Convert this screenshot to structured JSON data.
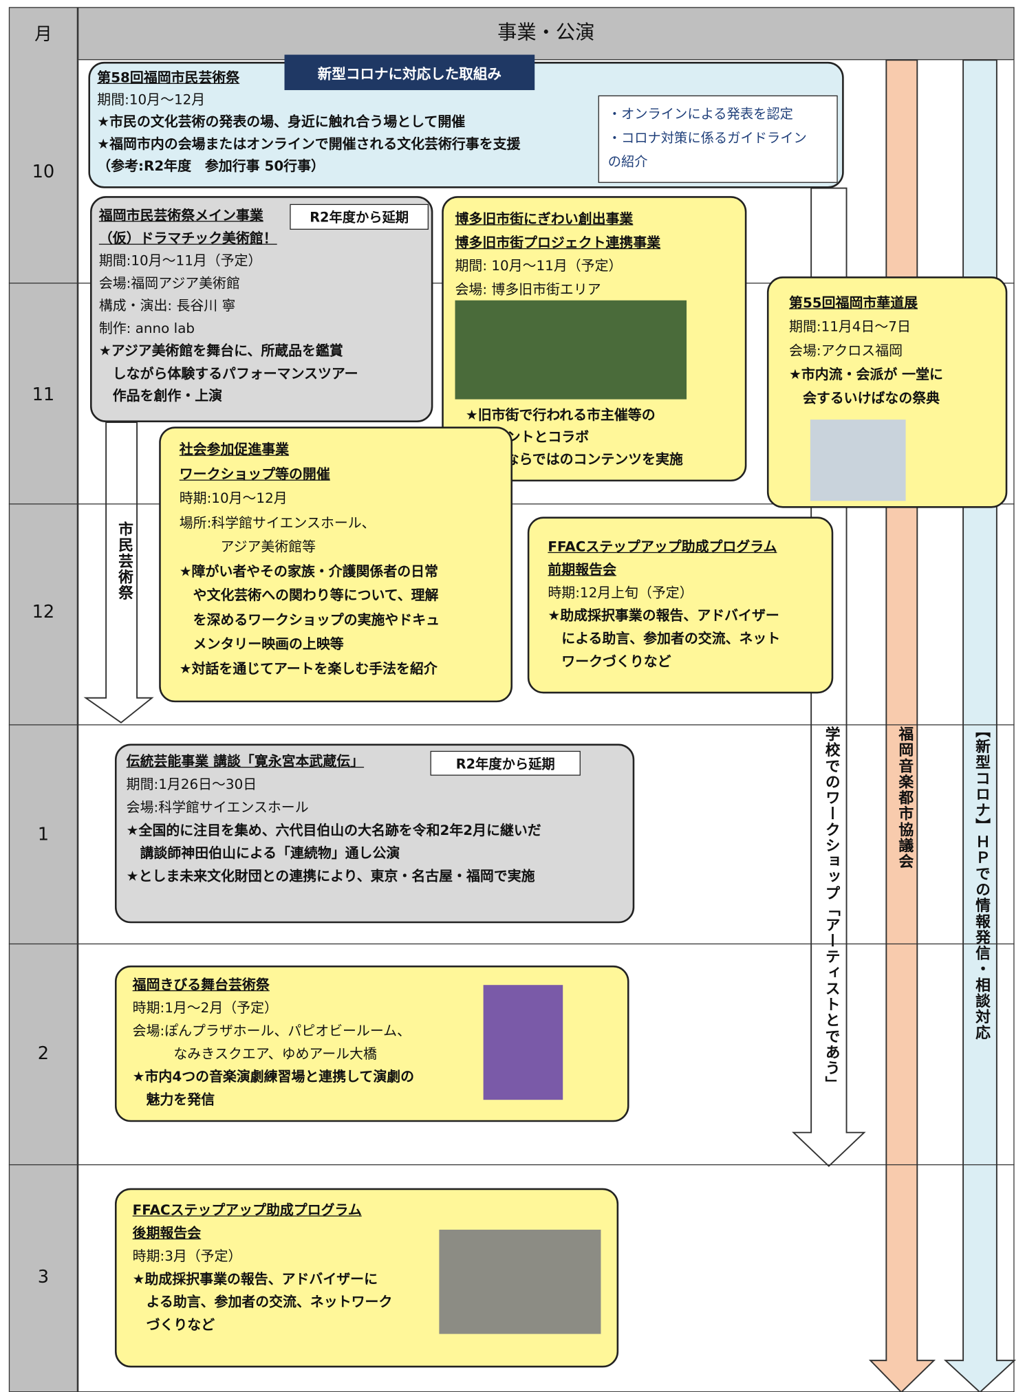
{
  "header": {
    "month_label": "月",
    "events_label": "事業・公演"
  },
  "months": [
    "10",
    "11",
    "12",
    "1",
    "2",
    "3"
  ],
  "corona_tag": "新型コロナに対応した取組み",
  "events": [
    {
      "title": [
        "第58回福岡市民芸術祭"
      ],
      "lines": [
        "期間:10月～12月",
        "★市民の文化芸術の発表の場、身近に触れ合う場として開催",
        "★福岡市内の会場またはオンラインで開催される文化芸術行事を支援",
        "（参考:R2年度　参加行事 50行事）"
      ],
      "note": [
        "・オンラインによる発表を認定",
        "・コロナ対策に係るガイドライン",
        "の紹介"
      ]
    },
    {
      "title": [
        "福岡市民芸術祭メイン事業",
        "（仮）ドラマチック美術館！"
      ],
      "tag": "R2年度から延期",
      "lines": [
        "期間:10月～11月（予定）",
        "会場:福岡アジア美術館",
        "構成・演出: 長谷川 寧",
        "制作: anno lab",
        "★アジア美術館を舞台に、所蔵品を鑑賞",
        "　しながら体験するパフォーマンスツアー",
        "　作品を創作・上演"
      ]
    },
    {
      "title": [
        "博多旧市街にぎわい創出事業",
        "博多旧市街プロジェクト連携事業"
      ],
      "lines": [
        "期間: 10月～11月（予定）",
        "会場: 博多旧市街エリア"
      ],
      "lines_after_image": [
        "★旧市街で行われる市主催等の",
        "　イベントとコラボ",
        "★財団ならではのコンテンツを実施"
      ]
    },
    {
      "title": [
        "第55回福岡市華道展"
      ],
      "lines": [
        "期間:11月4日～7日",
        "会場:アクロス福岡",
        "★市内流・会派が 一堂に",
        "　会するいけばなの祭典"
      ]
    },
    {
      "title": [
        "社会参加促進事業",
        "ワークショップ等の開催"
      ],
      "lines": [
        "時期:10月～12月",
        "場所:科学館サイエンスホール、",
        "　　　アジア美術館等",
        "★障がい者やその家族・介護関係者の日常",
        "　や文化芸術への関わり等について、理解",
        "　を深めるワークショップの実施やドキュ",
        "　メンタリー映画の上映等",
        "★対話を通じてアートを楽しむ手法を紹介"
      ]
    },
    {
      "title": [
        "FFACステップアップ助成プログラム",
        "前期報告会"
      ],
      "lines": [
        "時期:12月上旬（予定）",
        "★助成採択事業の報告、アドバイザー",
        "　による助言、参加者の交流、ネット",
        "　ワークづくりなど"
      ]
    },
    {
      "title": [
        "伝統芸能事業 講談「寛永宮本武蔵伝」"
      ],
      "tag": "R2年度から延期",
      "lines": [
        "期間:1月26日～30日",
        "会場:科学館サイエンスホール",
        "★全国的に注目を集め、六代目伯山の大名跡を令和2年2月に継いだ",
        "　講談師神田伯山による「連続物」通し公演",
        "★としま未来文化財団との連携により、東京・名古屋・福岡で実施"
      ]
    },
    {
      "title": [
        "福岡きびる舞台芸術祭"
      ],
      "lines": [
        "時期:1月～2月（予定）",
        "会場:ぽんプラザホール、パピオビールーム、",
        "　　　なみきスクエア、ゆめアール大橋",
        "★市内4つの音楽演劇練習場と連携して演劇の",
        "　魅力を発信"
      ]
    },
    {
      "title": [
        "FFACステップアップ助成プログラム",
        "後期報告会"
      ],
      "lines": [
        "時期:3月（予定）",
        "★助成採択事業の報告、アドバイザーに",
        "　よる助言、参加者の交流、ネットワーク",
        "　づくりなど"
      ]
    }
  ],
  "arrows": [
    "市民芸術祭",
    "学校でのワークショップ「アーティストとであう」",
    "福岡音楽都市協議会",
    "【新型コロナ】ＨＰでの情報発信・相談対応"
  ]
}
